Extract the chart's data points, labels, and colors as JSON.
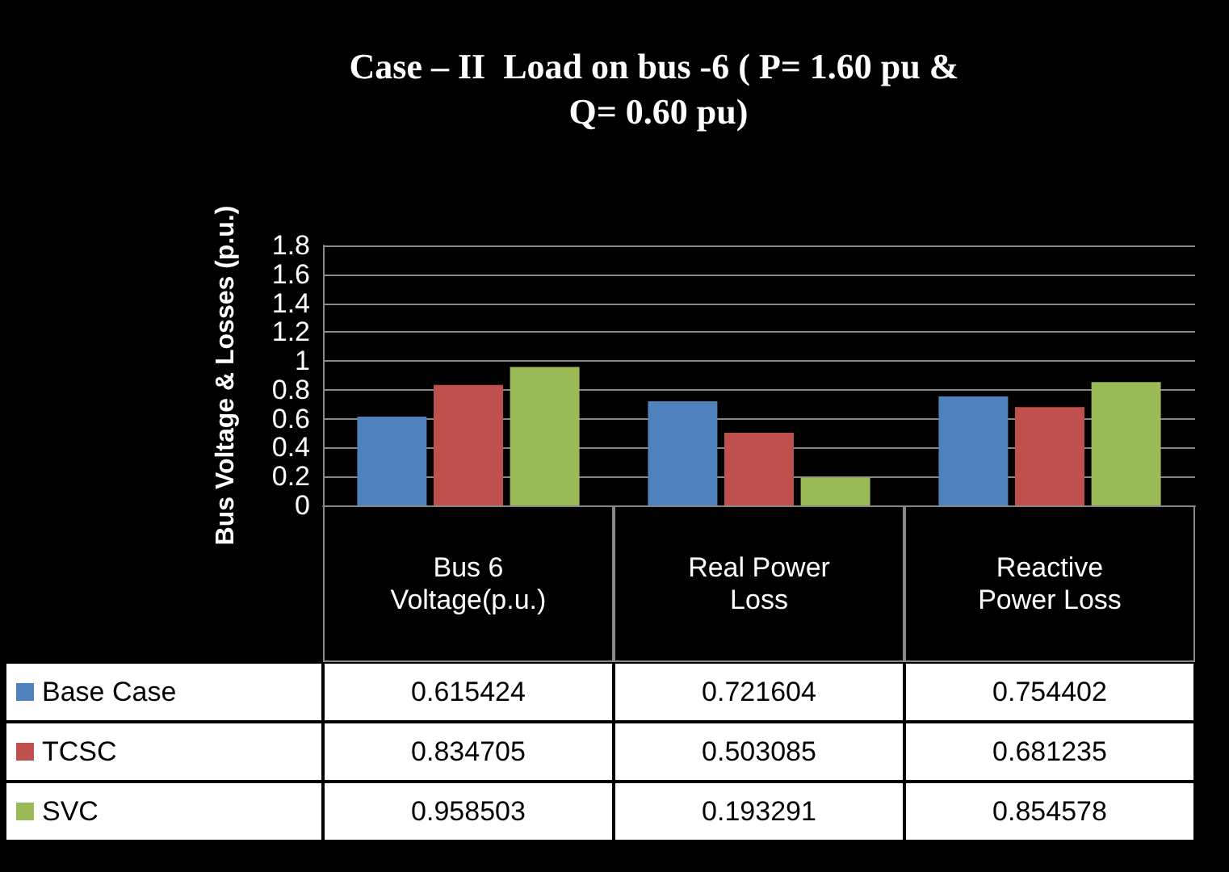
{
  "chart_data": {
    "type": "bar",
    "title": "Case – II  Load on bus -6 ( P= 1.60 pu & Q= 0.60 pu)",
    "ylabel": "Bus Voltage & Losses (p.u.)",
    "categories": [
      "Bus 6 Voltage(p.u.)",
      "Real Power Loss",
      "Reactive Power Loss"
    ],
    "series": [
      {
        "name": "Base Case",
        "color": "#4f81bd",
        "values": [
          0.615424,
          0.721604,
          0.754402
        ]
      },
      {
        "name": "TCSC",
        "color": "#c0504d",
        "values": [
          0.834705,
          0.503085,
          0.681235
        ]
      },
      {
        "name": "SVC",
        "color": "#9bbb59",
        "values": [
          0.958503,
          0.193291,
          0.854578
        ]
      }
    ],
    "ylim": [
      0,
      1.8
    ],
    "yticks": [
      0,
      0.2,
      0.4,
      0.6,
      0.8,
      1,
      1.2,
      1.4,
      1.6,
      1.8
    ],
    "grid": "y",
    "data_labels": true,
    "legend": "bottom left"
  }
}
